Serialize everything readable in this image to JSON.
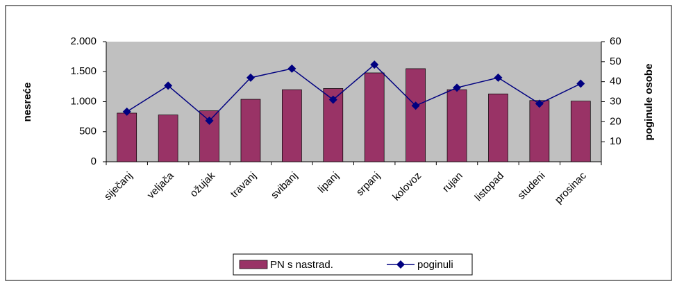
{
  "chart_data": {
    "type": "bar_line",
    "categories": [
      "siječanj",
      "veljača",
      "ožujak",
      "travanj",
      "svibanj",
      "lipanj",
      "srpanj",
      "kolovoz",
      "rujan",
      "listopad",
      "studeni",
      "prosinac"
    ],
    "series": [
      {
        "name": "PN s nastrad.",
        "type": "bar",
        "color": "#993366",
        "values": [
          810,
          780,
          850,
          1040,
          1200,
          1220,
          1480,
          1550,
          1200,
          1130,
          1020,
          1010
        ]
      },
      {
        "name": "poginuli",
        "type": "line",
        "axis": "y2",
        "color": "#000080",
        "values": [
          25,
          38,
          20.5,
          42,
          46.5,
          31,
          48.5,
          28,
          37,
          42,
          29,
          39
        ]
      }
    ],
    "ylabel": "nesreće",
    "y2label": "poginule osobe",
    "ylim": [
      0,
      2000
    ],
    "yticks": [
      0,
      500,
      {
        "value": 1000,
        "label": "1.000"
      },
      {
        "value": 1500,
        "label": "1.500"
      },
      {
        "value": 2000,
        "label": "2.000"
      }
    ],
    "y2lim": [
      0,
      60
    ],
    "y2ticks": [
      10,
      20,
      30,
      40,
      50,
      60
    ],
    "grid": false,
    "plot_background": "#c0c0c0",
    "legend": "bottom"
  }
}
